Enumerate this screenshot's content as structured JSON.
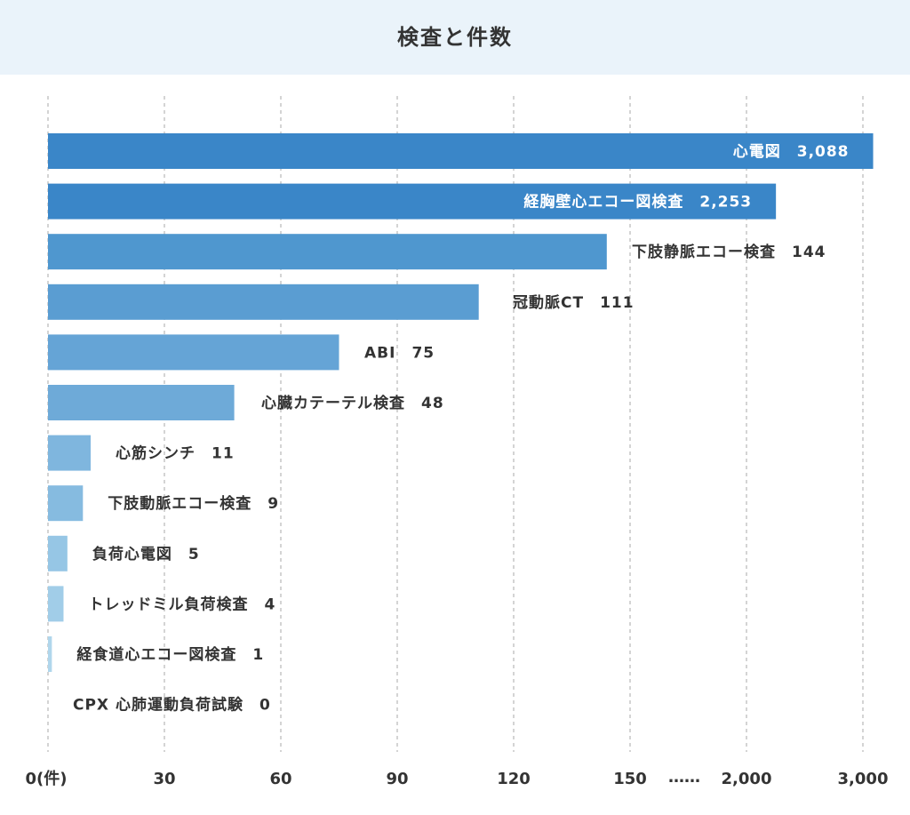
{
  "chart_data": {
    "type": "bar",
    "orientation": "horizontal",
    "title": "検査と件数",
    "x_axis": {
      "broken": true,
      "break_symbol": "……",
      "ticks": [
        {
          "value": 0,
          "label": "0(件)"
        },
        {
          "value": 30,
          "label": "30"
        },
        {
          "value": 60,
          "label": "60"
        },
        {
          "value": 90,
          "label": "90"
        },
        {
          "value": 120,
          "label": "120"
        },
        {
          "value": 150,
          "label": "150"
        },
        {
          "value": 2000,
          "label": "2,000"
        },
        {
          "value": 3000,
          "label": "3,000"
        }
      ]
    },
    "grid": "vertical-dashed",
    "categories": [
      "心電図",
      "経胸壁心エコー図検査",
      "下肢静脈エコー検査",
      "冠動脈CT",
      "ABI",
      "心臓カテーテル検査",
      "心筋シンチ",
      "下肢動脈エコー検査",
      "負荷心電図",
      "トレッドミル負荷検査",
      "経食道心エコー図検査",
      "CPX 心肺運動負荷試験"
    ],
    "values": [
      3088,
      2253,
      144,
      111,
      75,
      48,
      11,
      9,
      5,
      4,
      1,
      0
    ],
    "value_labels": [
      "3,088",
      "2,253",
      "144",
      "111",
      "75",
      "48",
      "11",
      "9",
      "5",
      "4",
      "1",
      "0"
    ],
    "colors": [
      "#3a86c8",
      "#3a86c8",
      "#4f97cf",
      "#5a9dd2",
      "#65a4d6",
      "#6eaad8",
      "#7fb6de",
      "#86bbe0",
      "#96c6e5",
      "#a1cde8",
      "#b0d6ec",
      "#bcdcef"
    ]
  }
}
